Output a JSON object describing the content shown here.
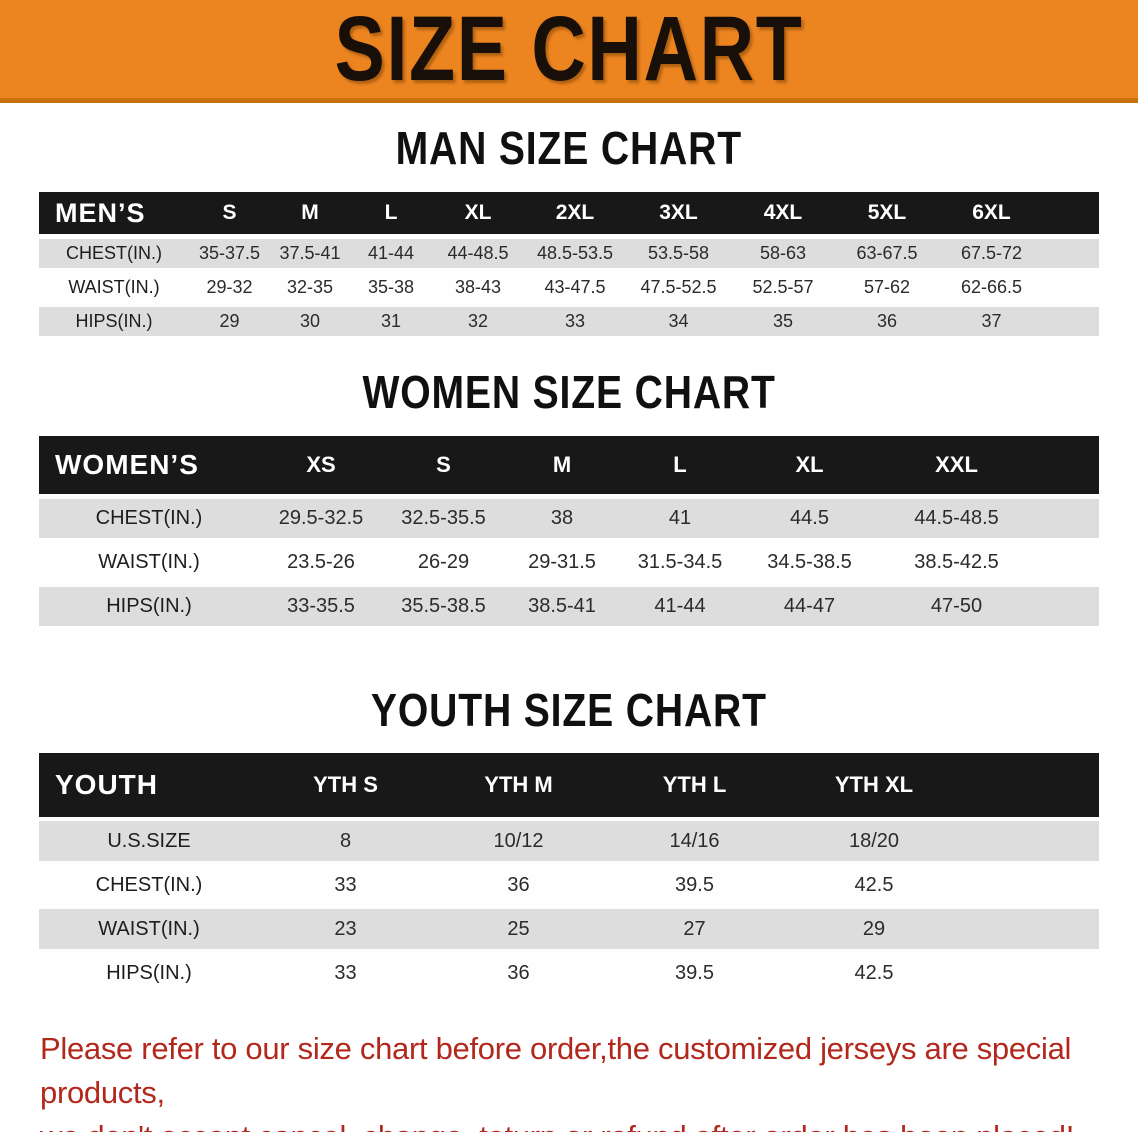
{
  "banner": {
    "title": "SIZE CHART",
    "bg_color": "#EC8420",
    "edge_color": "#C9700F"
  },
  "sections": [
    {
      "id": "men",
      "heading": "MAN SIZE CHART",
      "group_label": "MEN’S",
      "columns": [
        "S",
        "M",
        "L",
        "XL",
        "2XL",
        "3XL",
        "4XL",
        "5XL",
        "6XL"
      ],
      "rows": [
        {
          "label": "CHEST(IN.)",
          "values": [
            "35-37.5",
            "37.5-41",
            "41-44",
            "44-48.5",
            "48.5-53.5",
            "53.5-58",
            "58-63",
            "63-67.5",
            "67.5-72"
          ]
        },
        {
          "label": "WAIST(IN.)",
          "values": [
            "29-32",
            "32-35",
            "35-38",
            "38-43",
            "43-47.5",
            "47.5-52.5",
            "52.5-57",
            "57-62",
            "62-66.5"
          ]
        },
        {
          "label": "HIPS(IN.)",
          "values": [
            "29",
            "30",
            "31",
            "32",
            "33",
            "34",
            "35",
            "36",
            "37"
          ]
        }
      ]
    },
    {
      "id": "women",
      "heading": "WOMEN SIZE CHART",
      "group_label": "WOMEN’S",
      "columns": [
        "XS",
        "S",
        "M",
        "L",
        "XL",
        "XXL"
      ],
      "rows": [
        {
          "label": "CHEST(IN.)",
          "values": [
            "29.5-32.5",
            "32.5-35.5",
            "38",
            "41",
            "44.5",
            "44.5-48.5"
          ]
        },
        {
          "label": "WAIST(IN.)",
          "values": [
            "23.5-26",
            "26-29",
            "29-31.5",
            "31.5-34.5",
            "34.5-38.5",
            "38.5-42.5"
          ]
        },
        {
          "label": "HIPS(IN.)",
          "values": [
            "33-35.5",
            "35.5-38.5",
            "38.5-41",
            "41-44",
            "44-47",
            "47-50"
          ]
        }
      ]
    },
    {
      "id": "youth",
      "heading": "YOUTH SIZE CHART",
      "group_label": "YOUTH",
      "columns": [
        "YTH S",
        "YTH M",
        "YTH L",
        "YTH XL"
      ],
      "rows": [
        {
          "label": "U.S.SIZE",
          "values": [
            "8",
            "10/12",
            "14/16",
            "18/20"
          ]
        },
        {
          "label": "CHEST(IN.)",
          "values": [
            "33",
            "36",
            "39.5",
            "42.5"
          ]
        },
        {
          "label": "WAIST(IN.)",
          "values": [
            "23",
            "25",
            "27",
            "29"
          ]
        },
        {
          "label": "HIPS(IN.)",
          "values": [
            "33",
            "36",
            "39.5",
            "42.5"
          ]
        }
      ]
    }
  ],
  "footer": {
    "line1": "Please refer to our size chart before order,the customized jerseys are special products,",
    "line2": "we don't accept cancel, change, teturn or refund after order has been placed!",
    "text_color": "#B3281C"
  },
  "colors": {
    "header_bar": "#181818",
    "row_shaded": "#DDDDDD",
    "row_plain": "#FEFEFE"
  }
}
